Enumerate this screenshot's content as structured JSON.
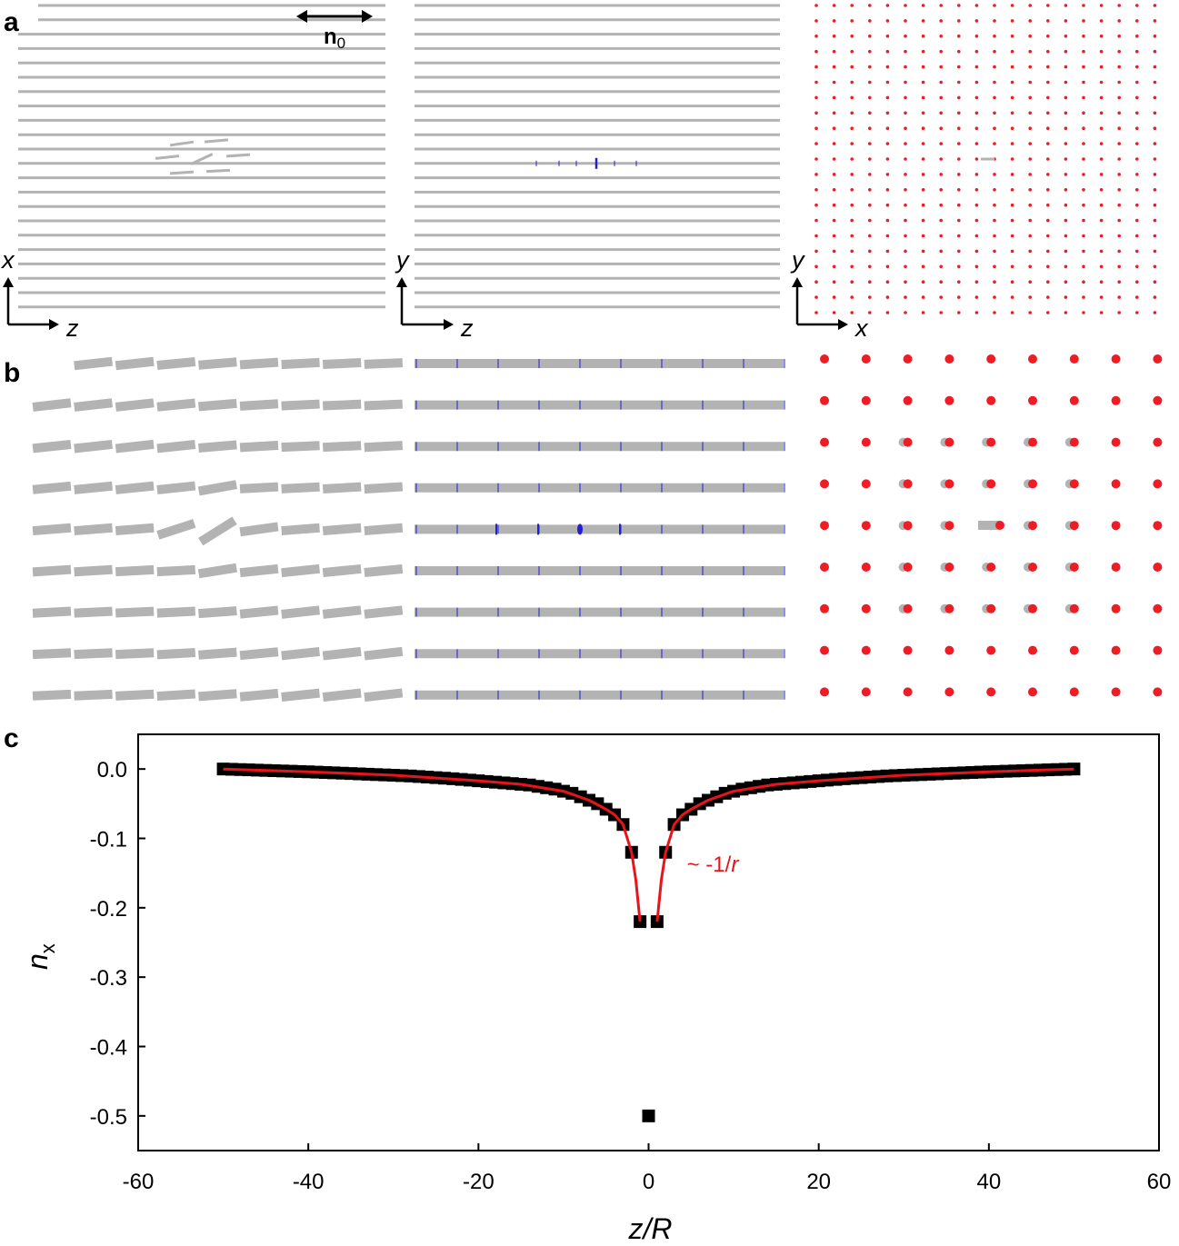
{
  "panels": {
    "a": "a",
    "b": "b",
    "c": "c"
  },
  "axes_labels": {
    "left": {
      "vertical": "x",
      "horizontal": "z"
    },
    "middle": {
      "vertical": "y",
      "horizontal": "z"
    },
    "right": {
      "vertical": "y",
      "horizontal": "x"
    }
  },
  "director_label": {
    "main": "n",
    "sub": "0"
  },
  "colors": {
    "rod": "#b3b3b3",
    "particle_red": "#ee1c24",
    "defect_blue": "#1f1fd6",
    "fit_line": "#e8141b",
    "data_marker": "#000000"
  },
  "chart_data": {
    "type": "scatter",
    "x_label_main": "z",
    "x_label_rest": "/R",
    "y_label_main": "n",
    "y_label_sub": "x",
    "xlim": [
      -60,
      60
    ],
    "ylim": [
      -0.55,
      0.05
    ],
    "xticks": [
      -60,
      -40,
      -20,
      0,
      20,
      40,
      60
    ],
    "yticks": [
      0.0,
      -0.1,
      -0.2,
      -0.3,
      -0.4,
      -0.5
    ],
    "ytick_labels": [
      "0.0",
      "-0.1",
      "-0.2",
      "-0.3",
      "-0.4",
      "-0.5"
    ],
    "grid": false,
    "annotation": {
      "prefix": "~ -1/",
      "italic": "r"
    },
    "series": [
      {
        "kind": "points",
        "marker": "square",
        "x": [
          -50,
          -49,
          -48,
          -47,
          -46,
          -45,
          -44,
          -43,
          -42,
          -41,
          -40,
          -39,
          -38,
          -37,
          -36,
          -35,
          -34,
          -33,
          -32,
          -31,
          -30,
          -29,
          -28,
          -27,
          -26,
          -25,
          -24,
          -23,
          -22,
          -21,
          -20,
          -19,
          -18,
          -17,
          -16,
          -15,
          -14,
          -13,
          -12,
          -11,
          -10,
          -9,
          -8,
          -7,
          -6,
          -5,
          -4,
          -3,
          -2,
          -1,
          0,
          1,
          2,
          3,
          4,
          5,
          6,
          7,
          8,
          9,
          10,
          11,
          12,
          13,
          14,
          15,
          16,
          17,
          18,
          19,
          20,
          21,
          22,
          23,
          24,
          25,
          26,
          27,
          28,
          29,
          30,
          31,
          32,
          33,
          34,
          35,
          36,
          37,
          38,
          39,
          40,
          41,
          42,
          43,
          44,
          45,
          46,
          47,
          48,
          49,
          50
        ],
        "y": [
          0.0,
          -0.0004,
          -0.0008,
          -0.0012,
          -0.0016,
          -0.002,
          -0.0024,
          -0.0028,
          -0.0032,
          -0.0036,
          -0.004,
          -0.0045,
          -0.005,
          -0.0055,
          -0.006,
          -0.0065,
          -0.007,
          -0.0075,
          -0.008,
          -0.0085,
          -0.009,
          -0.0095,
          -0.01,
          -0.0108,
          -0.0116,
          -0.0124,
          -0.0132,
          -0.014,
          -0.015,
          -0.016,
          -0.017,
          -0.018,
          -0.019,
          -0.02,
          -0.021,
          -0.022,
          -0.023,
          -0.025,
          -0.027,
          -0.029,
          -0.032,
          -0.035,
          -0.04,
          -0.045,
          -0.05,
          -0.058,
          -0.066,
          -0.08,
          -0.12,
          -0.22,
          -0.5,
          -0.22,
          -0.12,
          -0.08,
          -0.066,
          -0.058,
          -0.05,
          -0.045,
          -0.04,
          -0.035,
          -0.032,
          -0.029,
          -0.027,
          -0.025,
          -0.023,
          -0.022,
          -0.021,
          -0.02,
          -0.019,
          -0.018,
          -0.017,
          -0.016,
          -0.015,
          -0.014,
          -0.0132,
          -0.0124,
          -0.0116,
          -0.0108,
          -0.01,
          -0.0095,
          -0.009,
          -0.0085,
          -0.008,
          -0.0075,
          -0.007,
          -0.0065,
          -0.006,
          -0.0055,
          -0.005,
          -0.0045,
          -0.004,
          -0.0036,
          -0.0032,
          -0.0028,
          -0.0024,
          -0.002,
          -0.0016,
          -0.0012,
          -0.0008,
          -0.0004,
          0.0
        ]
      },
      {
        "kind": "line",
        "x": [
          -50,
          -40,
          -30,
          -20,
          -15,
          -10,
          -7,
          -5,
          -4,
          -3,
          -2,
          -1.5,
          -1,
          1,
          1.5,
          2,
          3,
          4,
          5,
          7,
          10,
          15,
          20,
          30,
          40,
          50
        ],
        "y": [
          0.0,
          -0.004,
          -0.009,
          -0.017,
          -0.022,
          -0.032,
          -0.045,
          -0.058,
          -0.066,
          -0.08,
          -0.12,
          -0.16,
          -0.22,
          -0.22,
          -0.16,
          -0.12,
          -0.08,
          -0.066,
          -0.058,
          -0.045,
          -0.032,
          -0.022,
          -0.017,
          -0.009,
          -0.004,
          0.0
        ]
      }
    ]
  }
}
